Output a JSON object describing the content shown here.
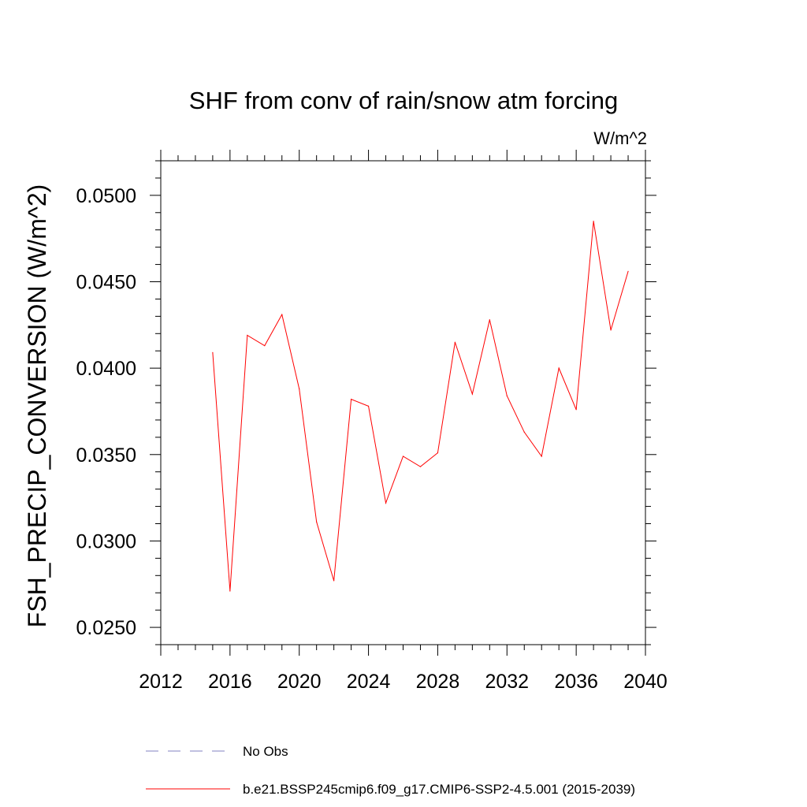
{
  "chart_data": {
    "type": "line",
    "title": "SHF from conv of rain/snow atm forcing",
    "units": "W/m^2",
    "ylabel": "FSH_PRECIP_CONVERSION  (W/m^2)",
    "xlabel": "",
    "xlim": [
      2012,
      2040
    ],
    "ylim": [
      0.024,
      0.052
    ],
    "x_ticks": [
      2012,
      2016,
      2020,
      2024,
      2028,
      2032,
      2036,
      2040
    ],
    "x_tick_labels": [
      "2012",
      "2016",
      "2020",
      "2024",
      "2028",
      "2032",
      "2036",
      "2040"
    ],
    "y_ticks": [
      0.025,
      0.03,
      0.035,
      0.04,
      0.045,
      0.05
    ],
    "y_tick_labels": [
      "0.0250",
      "0.0300",
      "0.0350",
      "0.0400",
      "0.0450",
      "0.0500"
    ],
    "series": [
      {
        "name": "b.e21.BSSP245cmip6.f09_g17.CMIP6-SSP2-4.5.001 (2015-2039)",
        "color": "#ff0000",
        "style": "solid",
        "x": [
          2015,
          2016,
          2017,
          2018,
          2019,
          2020,
          2021,
          2022,
          2023,
          2024,
          2025,
          2026,
          2027,
          2028,
          2029,
          2030,
          2031,
          2032,
          2033,
          2034,
          2035,
          2036,
          2037,
          2038,
          2039
        ],
        "values": [
          0.0409,
          0.0271,
          0.0419,
          0.0413,
          0.0431,
          0.0388,
          0.0311,
          0.0277,
          0.0382,
          0.0378,
          0.0322,
          0.0349,
          0.0343,
          0.0351,
          0.0415,
          0.0385,
          0.0428,
          0.0384,
          0.0363,
          0.0349,
          0.04,
          0.0376,
          0.0485,
          0.0422,
          0.0456
        ]
      }
    ],
    "legend": [
      {
        "label": "No Obs",
        "color": "#8080c0",
        "style": "dashed"
      },
      {
        "label": "b.e21.BSSP245cmip6.f09_g17.CMIP6-SSP2-4.5.001 (2015-2039)",
        "color": "#ff0000",
        "style": "solid"
      }
    ]
  }
}
